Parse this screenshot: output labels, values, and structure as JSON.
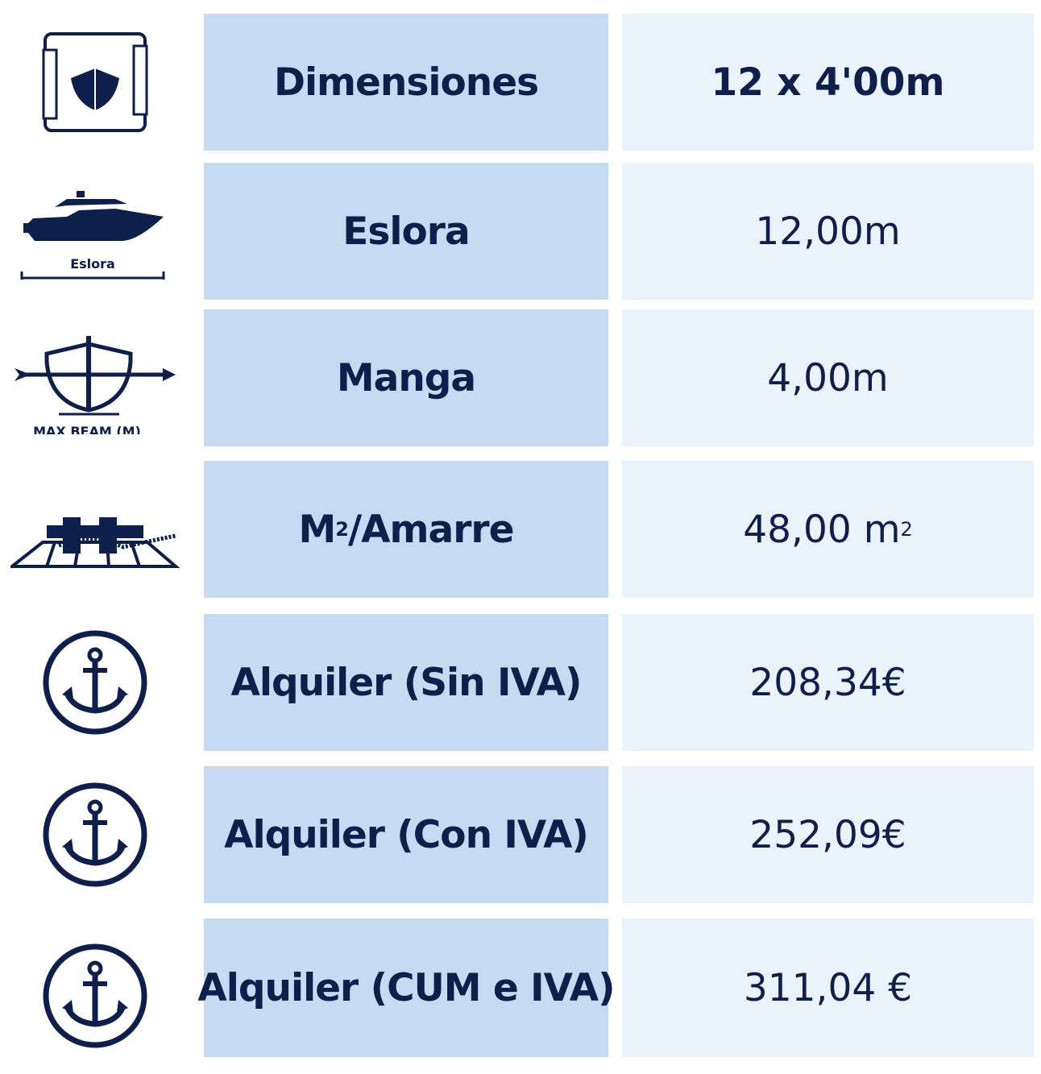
{
  "colors": {
    "label_bg": "#c6dbf1",
    "value_bg": "#eaf2fc",
    "text": "#0f1f4b"
  },
  "rows": [
    {
      "icon": "ruler-hull-icon",
      "label": "Dimensiones",
      "value": "12 x 4'00m"
    },
    {
      "icon": "yacht-length-icon",
      "icon_caption": "Eslora",
      "label": "Eslora",
      "value": "12,00m"
    },
    {
      "icon": "boat-beam-icon",
      "icon_caption": "MAX BEAM (M)",
      "label": "Manga",
      "value": "4,00m"
    },
    {
      "icon": "mooring-bollard-icon",
      "label": "M",
      "label_sub": "2",
      "label_rest": "/Amarre",
      "value": "48,00 m",
      "value_sub": "2"
    },
    {
      "icon": "anchor-icon",
      "label": "Alquiler (Sin IVA)",
      "value": "208,34€"
    },
    {
      "icon": "anchor-icon",
      "label": "Alquiler (Con IVA)",
      "value": "252,09€"
    },
    {
      "icon": "anchor-icon",
      "label": "Alquiler (CUM e IVA)",
      "value": "311,04 €"
    }
  ]
}
